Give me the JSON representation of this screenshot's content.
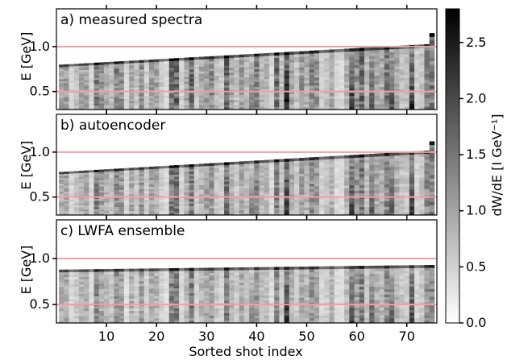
{
  "chart_data": {
    "type": "heatmap",
    "xlabel": "Sorted shot index",
    "ylabel": "E [GeV]",
    "x_range": [
      0,
      76
    ],
    "y_range": [
      0.3,
      1.42
    ],
    "x_ticks": [
      10,
      20,
      30,
      40,
      50,
      60,
      70
    ],
    "x_tick_labels": [
      "10",
      "20",
      "30",
      "40",
      "50",
      "60",
      "70"
    ],
    "y_ticks": [
      0.5,
      1.0
    ],
    "y_tick_labels": [
      "0.5",
      "1.0"
    ],
    "reference_lines": [
      0.5,
      1.0
    ],
    "reference_line_color": "#f0a0a0",
    "colorbar": {
      "label": "dW/dE [I GeV⁻¹]",
      "range": [
        0.0,
        2.8
      ],
      "ticks": [
        0.0,
        0.5,
        1.0,
        1.5,
        2.0,
        2.5
      ],
      "tick_labels": [
        "0.0",
        "0.5",
        "1.0",
        "1.5",
        "2.0",
        "2.5"
      ],
      "colormap": "gray_r"
    },
    "panels": [
      {
        "title": "a) measured spectra",
        "cutoff_start": 0.8,
        "cutoff_end": 1.03,
        "final_shot_cutoff": 1.15,
        "intensity_scale": 1.0
      },
      {
        "title": "b) autoencoder",
        "cutoff_start": 0.78,
        "cutoff_end": 1.02,
        "final_shot_cutoff": 1.12,
        "intensity_scale": 0.92
      },
      {
        "title": "c) LWFA ensemble",
        "cutoff_start": 0.88,
        "cutoff_end": 0.93,
        "final_shot_cutoff": 0.93,
        "intensity_scale": 0.85
      }
    ]
  }
}
